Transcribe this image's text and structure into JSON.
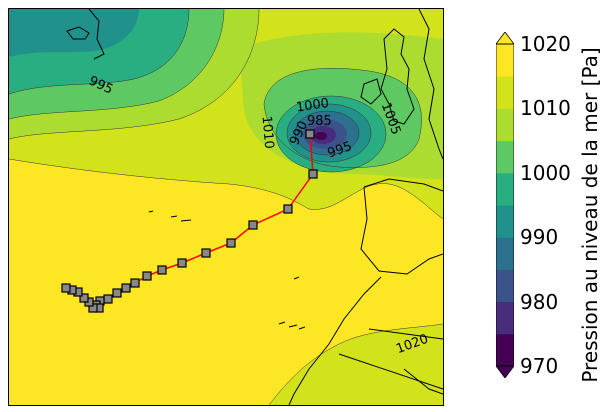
{
  "colors": {
    "c970": "#440154",
    "c975": "#472d7b",
    "c980": "#3b528b",
    "c985": "#2c728e",
    "c990": "#21918c",
    "c995": "#28ae80",
    "c1000": "#5ec962",
    "c1005": "#addc30",
    "c1010": "#d2e21b",
    "c1015": "#fde725",
    "track": "#ff0000",
    "marker": "#888888"
  },
  "contour_labels": {
    "l995": "995",
    "l1000": "1000",
    "l985": "985",
    "l990": "990",
    "l995b": "995",
    "l1005": "1005",
    "l1010": "1010",
    "l1020": "1020"
  },
  "colorbar": {
    "title": "Pression au niveau de la mer [Pa]",
    "ticks": [
      "1020",
      "1010",
      "1000",
      "990",
      "980",
      "970"
    ],
    "min": 970,
    "max": 1020,
    "step": 5,
    "extend": "both"
  },
  "track": {
    "points_count": 22
  }
}
